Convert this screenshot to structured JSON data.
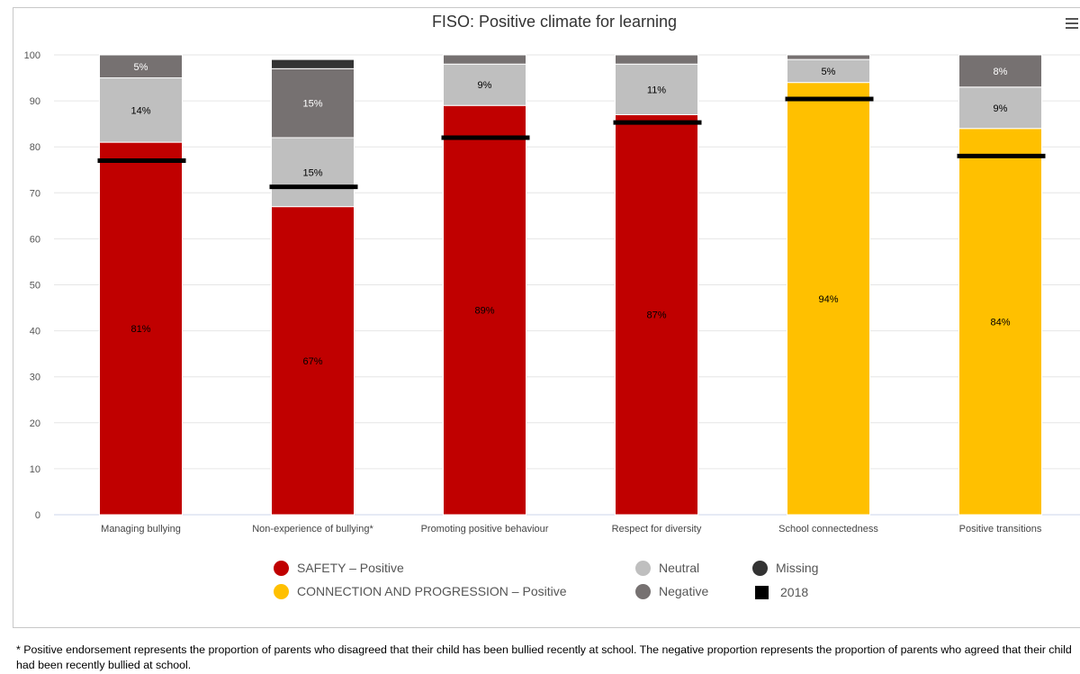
{
  "chart_data": {
    "type": "bar",
    "stacked": true,
    "title": "FISO: Positive climate for learning",
    "ylim": [
      0,
      100
    ],
    "yticks": [
      0,
      10,
      20,
      30,
      40,
      50,
      60,
      70,
      80,
      90,
      100
    ],
    "grid": true,
    "legend_position": "bottom",
    "categories": [
      "Managing bullying",
      "Non-experience of bullying*",
      "Promoting positive behaviour",
      "Respect for diversity",
      "School connectedness",
      "Positive transitions"
    ],
    "series": [
      {
        "name": "SAFETY – Positive",
        "color": "#c00000",
        "values": [
          81,
          67,
          null,
          null,
          null,
          null
        ],
        "labels": [
          "81%",
          "67%",
          "89%",
          "87%",
          "",
          ""
        ],
        "values_all": [
          81,
          67,
          89,
          87,
          null,
          null
        ]
      },
      {
        "name": "CONNECTION AND PROGRESSION – Positive",
        "color": "#ffc000",
        "values": [
          null,
          null,
          null,
          null,
          94,
          84
        ],
        "labels": [
          "",
          "",
          "",
          "",
          "94%",
          "84%"
        ]
      },
      {
        "name": "Neutral",
        "color": "#bfbfbf",
        "values": [
          14,
          15,
          9,
          11,
          5,
          9
        ],
        "labels": [
          "14%",
          "15%",
          "9%",
          "11%",
          "5%",
          "9%"
        ]
      },
      {
        "name": "Negative",
        "color": "#767171",
        "values": [
          5,
          15,
          2,
          2,
          1,
          8
        ],
        "labels": [
          "5%",
          "15%",
          "",
          "",
          "",
          "8%"
        ]
      },
      {
        "name": "Missing",
        "color": "#333333",
        "values": [
          0,
          2,
          0,
          0,
          0,
          0
        ],
        "labels": [
          "",
          "",
          "",
          "",
          "",
          ""
        ]
      }
    ],
    "markers_2018": {
      "name": "2018",
      "color": "#000000",
      "values": [
        77,
        71.3,
        82,
        85.3,
        90.4,
        78
      ]
    },
    "positive_colors": [
      "#c00000",
      "#c00000",
      "#c00000",
      "#c00000",
      "#ffc000",
      "#ffc000"
    ],
    "positive_values": [
      81,
      67,
      89,
      87,
      94,
      84
    ],
    "positive_labels": [
      "81%",
      "67%",
      "89%",
      "87%",
      "94%",
      "84%"
    ]
  },
  "legend": [
    {
      "label": "SAFETY – Positive",
      "color": "#c00000",
      "shape": "circle"
    },
    {
      "label": "CONNECTION AND PROGRESSION – Positive",
      "color": "#ffc000",
      "shape": "circle"
    },
    {
      "label": "Neutral",
      "color": "#bfbfbf",
      "shape": "circle"
    },
    {
      "label": "Negative",
      "color": "#767171",
      "shape": "circle"
    },
    {
      "label": "Missing",
      "color": "#333333",
      "shape": "circle"
    },
    {
      "label": "2018",
      "color": "#000000",
      "shape": "square"
    }
  ],
  "menu_icon": "hamburger-menu-icon",
  "footnote": "* Positive endorsement represents the proportion of parents who disagreed that their child has been bullied recently at school. The negative proportion represents the proportion of parents who agreed that their child had been recently bullied at school."
}
